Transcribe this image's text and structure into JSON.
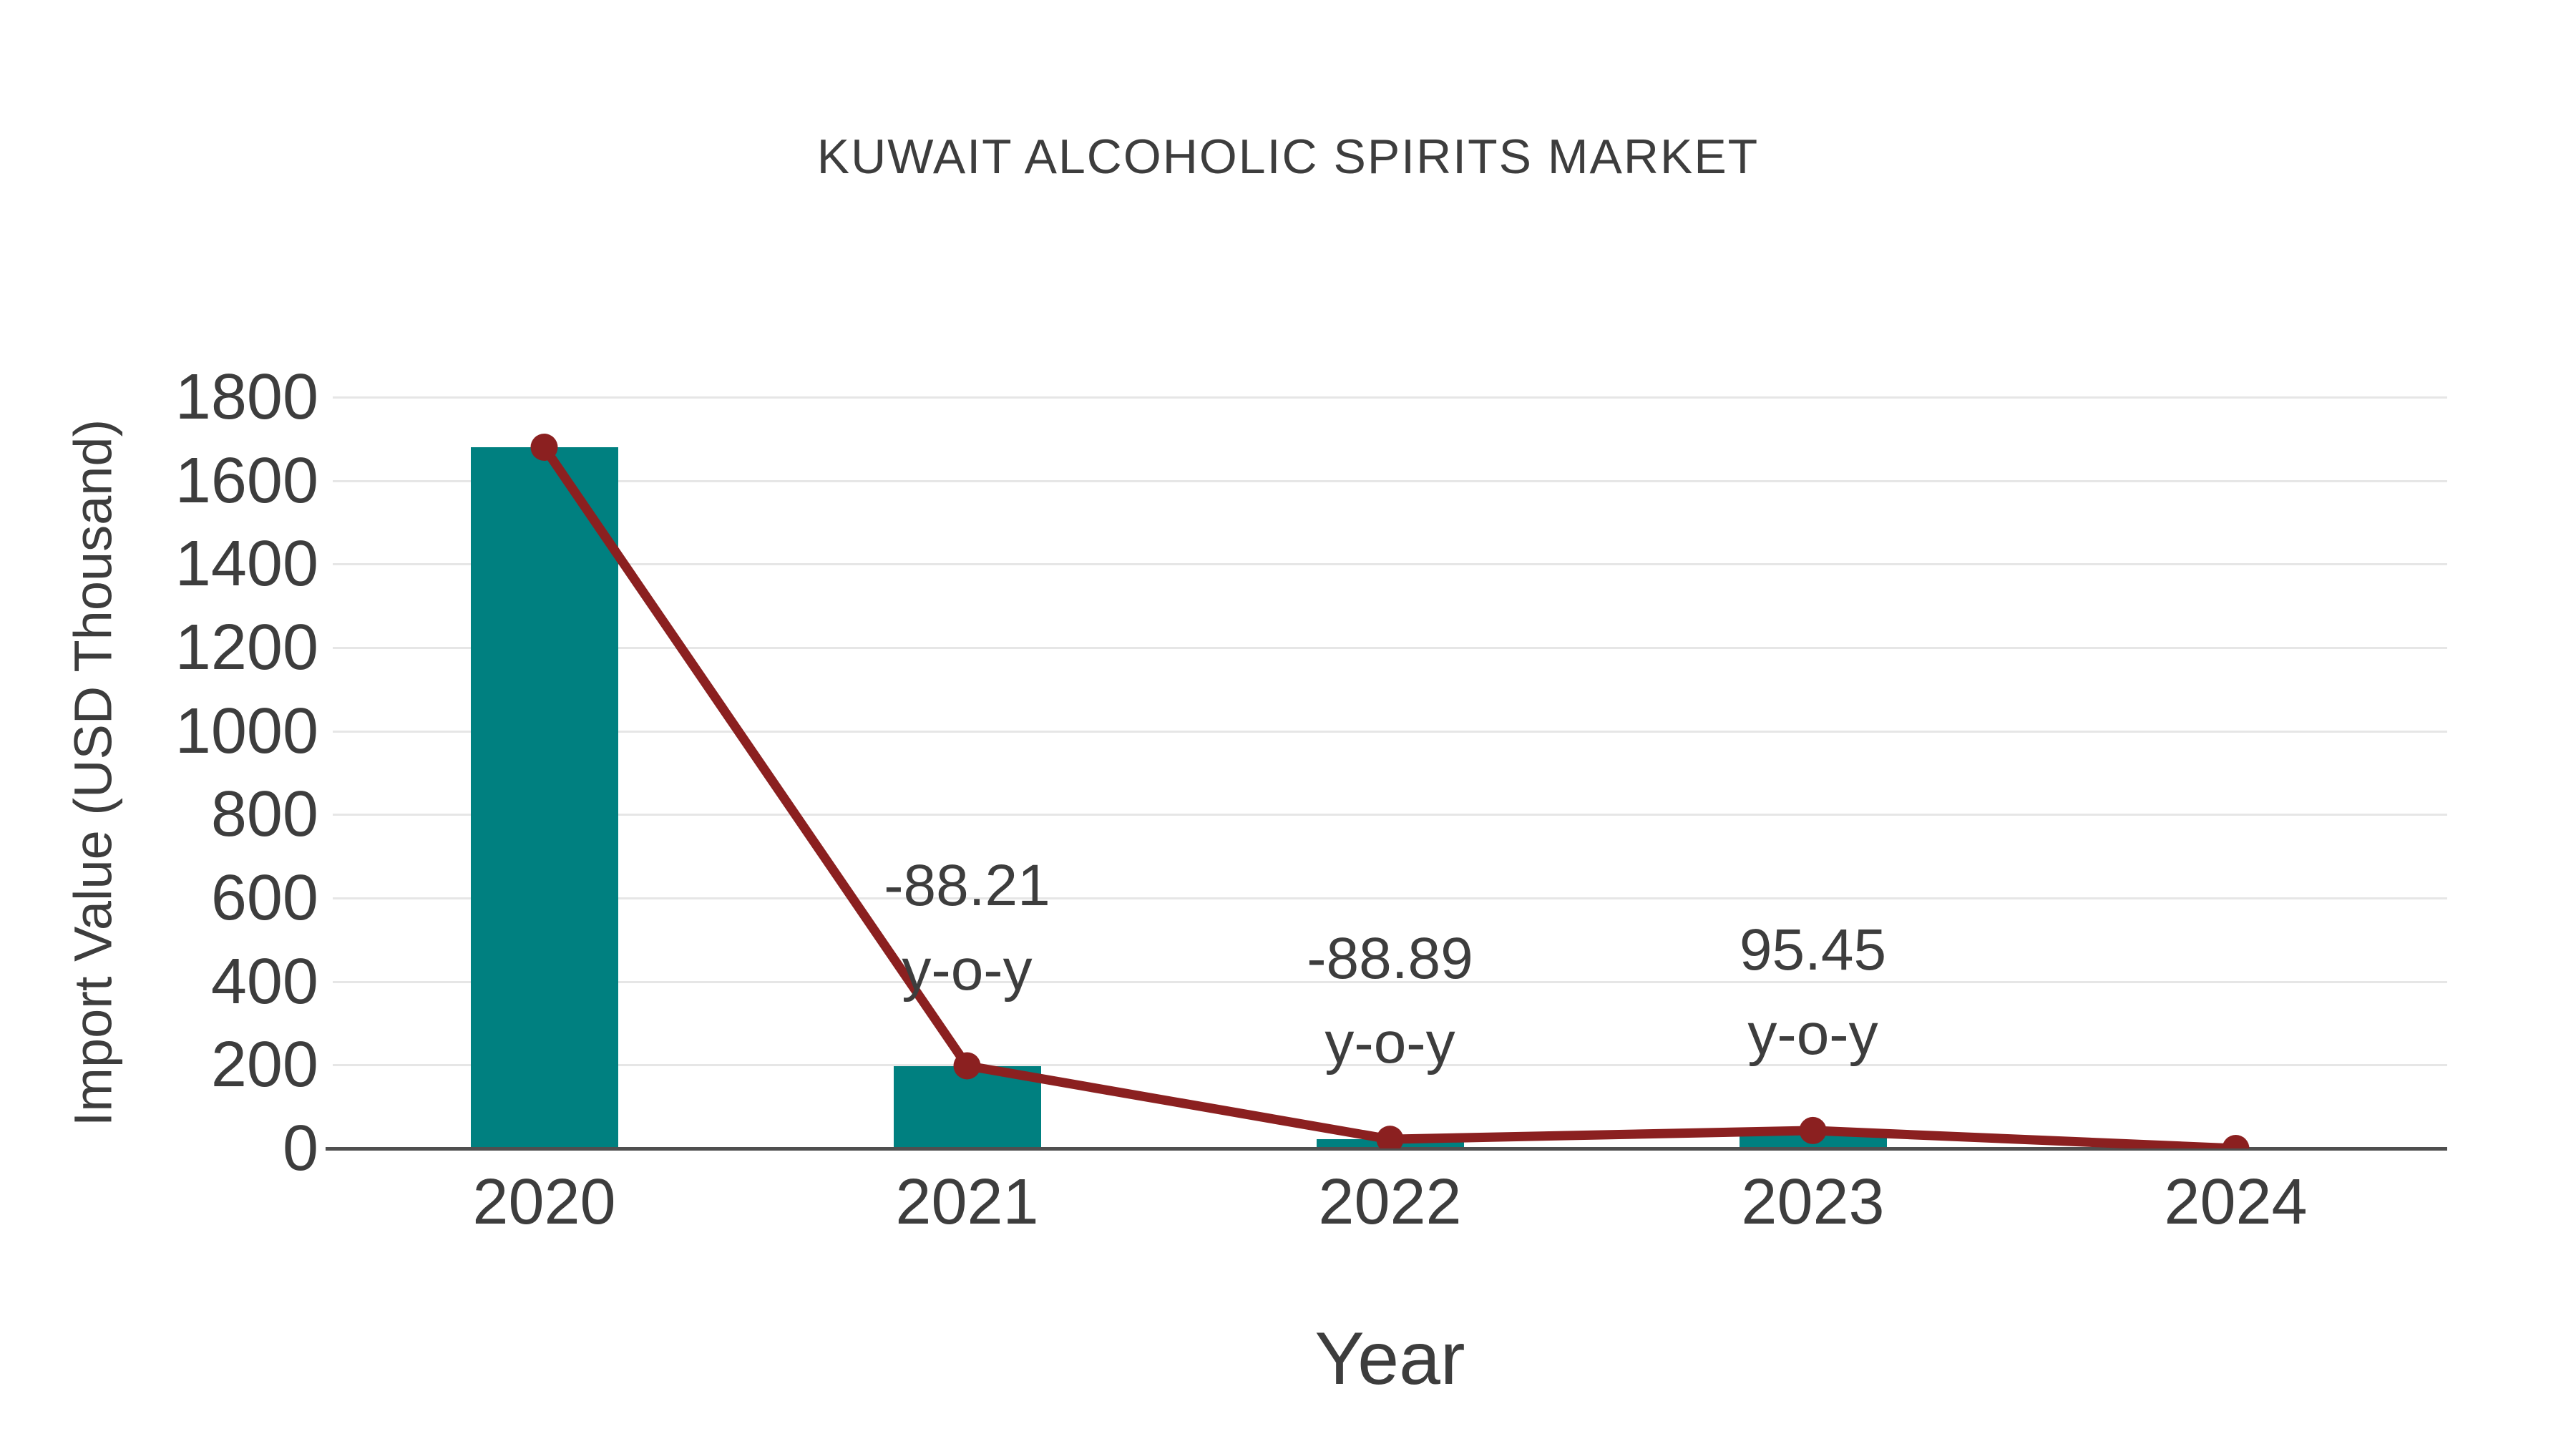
{
  "chart_data": {
    "type": "bar",
    "title": "KUWAIT ALCOHOLIC SPIRITS MARKET",
    "xlabel": "Year",
    "ylabel": "Import Value (USD Thousand)",
    "categories": [
      "2020",
      "2021",
      "2022",
      "2023",
      "2024"
    ],
    "series": [
      {
        "name": "import-value-bars",
        "type": "bar",
        "color": "#008080",
        "values": [
          1680,
          198,
          22,
          43,
          0
        ]
      },
      {
        "name": "import-value-line",
        "type": "line",
        "color": "#8b2020",
        "values": [
          1680,
          198,
          22,
          43,
          0
        ]
      }
    ],
    "annotations": [
      {
        "category": "2021",
        "lines": [
          "-88.21",
          "y-o-y"
        ]
      },
      {
        "category": "2022",
        "lines": [
          "-88.89",
          "y-o-y"
        ]
      },
      {
        "category": "2023",
        "lines": [
          "95.45",
          "y-o-y"
        ]
      }
    ],
    "yticks": [
      0,
      200,
      400,
      600,
      800,
      1000,
      1200,
      1400,
      1600,
      1800
    ],
    "ylim": [
      0,
      1800
    ],
    "grid": "horizontal",
    "legend": "none",
    "colors": {
      "bar": "#008080",
      "line": "#8b2020",
      "marker": "#8b2020",
      "text": "#3d3d3d",
      "gridline": "#e6e6e6",
      "axis_line": "#4f4f4f",
      "background": "#ffffff"
    }
  }
}
